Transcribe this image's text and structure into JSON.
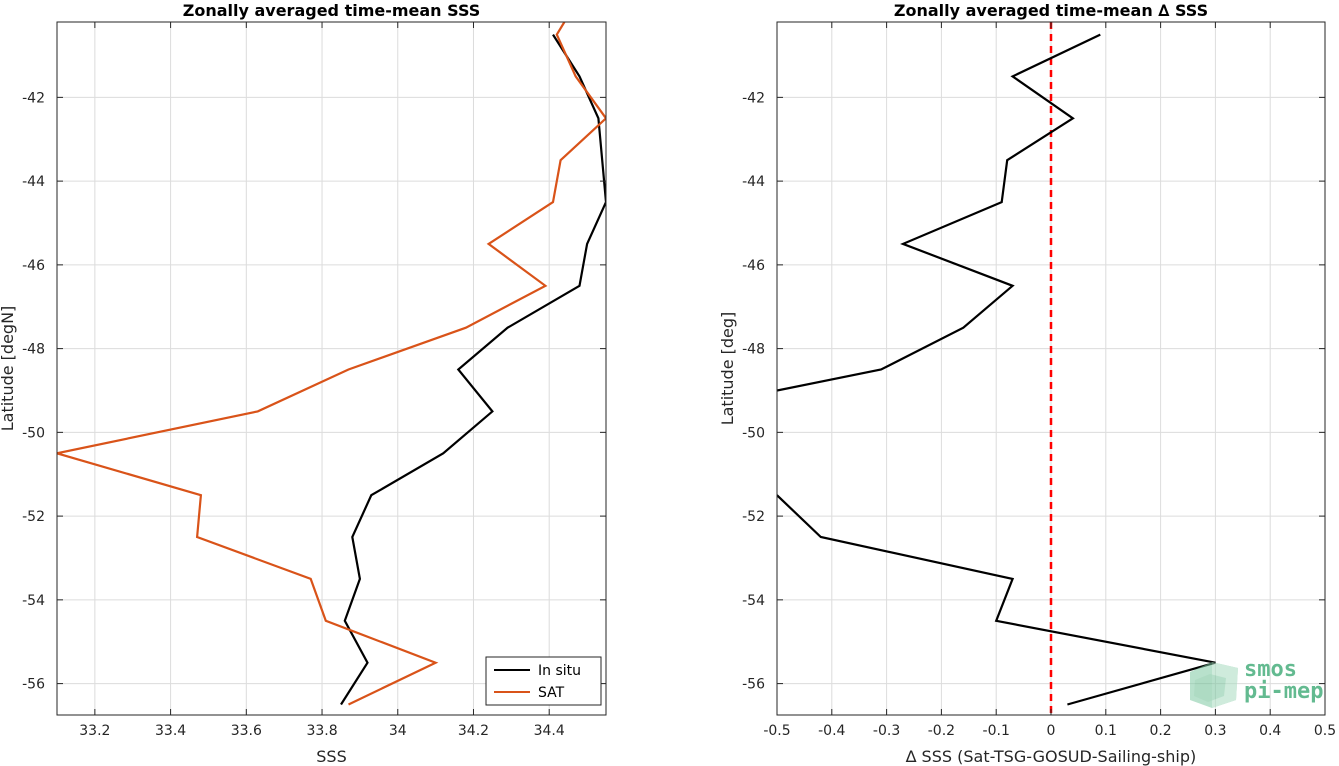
{
  "chart_data": [
    {
      "type": "line",
      "title": "Zonally averaged time-mean SSS",
      "xlabel": "SSS",
      "ylabel": "Latitude [degN]",
      "xlim": [
        33.1,
        34.55
      ],
      "ylim": [
        -56.75,
        -40.2
      ],
      "xticks": [
        33.2,
        33.4,
        33.6,
        33.8,
        34,
        34.2,
        34.4
      ],
      "yticks": [
        -56,
        -54,
        -52,
        -50,
        -48,
        -46,
        -44,
        -42
      ],
      "grid": true,
      "legend_location": "bottom-right",
      "series": [
        {
          "name": "In situ",
          "color": "#000000",
          "x": [
            34.41,
            34.48,
            34.53,
            34.54,
            34.55,
            34.5,
            34.48,
            34.29,
            34.16,
            34.25,
            34.12,
            33.93,
            33.88,
            33.9,
            33.86,
            33.92,
            33.85
          ],
          "y": [
            -40.5,
            -41.5,
            -42.5,
            -43.5,
            -44.5,
            -45.5,
            -46.5,
            -47.5,
            -48.5,
            -49.5,
            -50.5,
            -51.5,
            -52.5,
            -53.5,
            -54.5,
            -55.5,
            -56.5
          ]
        },
        {
          "name": "SAT",
          "color": "#d95319",
          "x": [
            34.44,
            34.42,
            34.47,
            34.55,
            34.43,
            34.41,
            34.24,
            34.39,
            34.18,
            33.87,
            33.63,
            33.1,
            33.48,
            33.47,
            33.77,
            33.81,
            34.1,
            33.87
          ],
          "y": [
            -40.2,
            -40.5,
            -41.5,
            -42.5,
            -43.5,
            -44.5,
            -45.5,
            -46.5,
            -47.5,
            -48.5,
            -49.5,
            -50.5,
            -51.5,
            -52.5,
            -53.5,
            -54.5,
            -55.5,
            -56.5
          ]
        }
      ]
    },
    {
      "type": "line",
      "title": "Zonally averaged time-mean ∆ SSS",
      "xlabel": "∆ SSS (Sat-TSG-GOSUD-Sailing-ship)",
      "ylabel": "Latitude [deg]",
      "xlim": [
        -0.5,
        0.5
      ],
      "ylim": [
        -56.75,
        -40.2
      ],
      "xticks": [
        -0.5,
        -0.4,
        -0.3,
        -0.2,
        -0.1,
        0,
        0.1,
        0.2,
        0.3,
        0.4,
        0.5
      ],
      "yticks": [
        -56,
        -54,
        -52,
        -50,
        -48,
        -46,
        -44,
        -42
      ],
      "grid": true,
      "reference_line": {
        "x": 0,
        "color": "#ff0000",
        "style": "dashed"
      },
      "series": [
        {
          "color": "#000000",
          "x": [
            0.09,
            -0.07,
            0.04,
            -0.08,
            -0.09,
            -0.27,
            -0.07,
            -0.16,
            -0.31,
            -0.5,
            null,
            -0.5,
            -0.42,
            -0.07,
            -0.1,
            0.3,
            0.03
          ],
          "y": [
            -40.5,
            -41.5,
            -42.5,
            -43.5,
            -44.5,
            -45.5,
            -46.5,
            -47.5,
            -48.5,
            -49.0,
            null,
            -51.5,
            -52.5,
            -53.5,
            -54.5,
            -55.5,
            -56.5
          ]
        }
      ]
    }
  ],
  "watermark": {
    "line1": "smos",
    "line2": "pi-mep",
    "color": "#2fa36b"
  }
}
